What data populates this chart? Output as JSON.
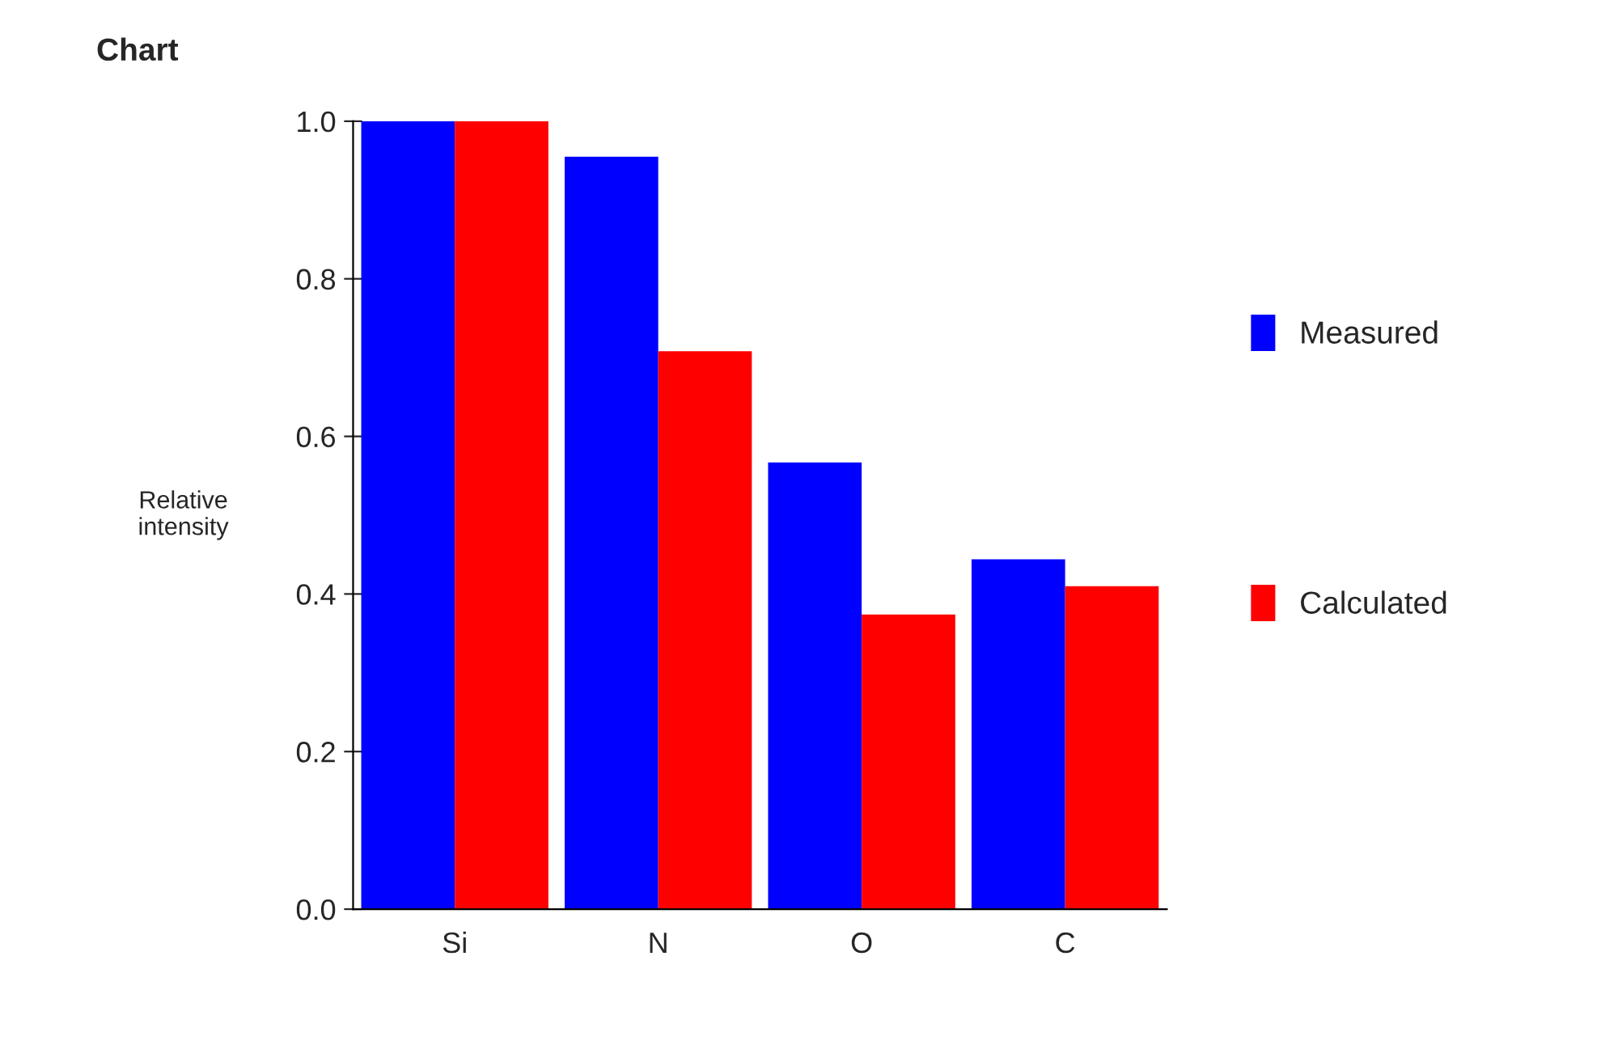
{
  "chart_data": {
    "type": "bar",
    "title": "Chart",
    "ylabel": "Relative\nintensity",
    "categories": [
      "Si",
      "N",
      "O",
      "C"
    ],
    "series": [
      {
        "name": "Measured",
        "color": "#0000ff",
        "values": [
          1.0,
          0.955,
          0.567,
          0.444
        ]
      },
      {
        "name": "Calculated",
        "color": "#ff0000",
        "values": [
          1.0,
          0.708,
          0.374,
          0.41
        ]
      }
    ],
    "ylim": [
      0,
      1.0
    ],
    "yticks": [
      {
        "value": 0,
        "label": "0.0"
      },
      {
        "value": 0.2,
        "label": "0.2"
      },
      {
        "value": 0.4,
        "label": "0.4"
      },
      {
        "value": 0.6,
        "label": "0.6"
      },
      {
        "value": 0.8,
        "label": "0.8"
      },
      {
        "value": 1.0,
        "label": "1.0"
      }
    ],
    "grid": false,
    "legend": "right"
  }
}
